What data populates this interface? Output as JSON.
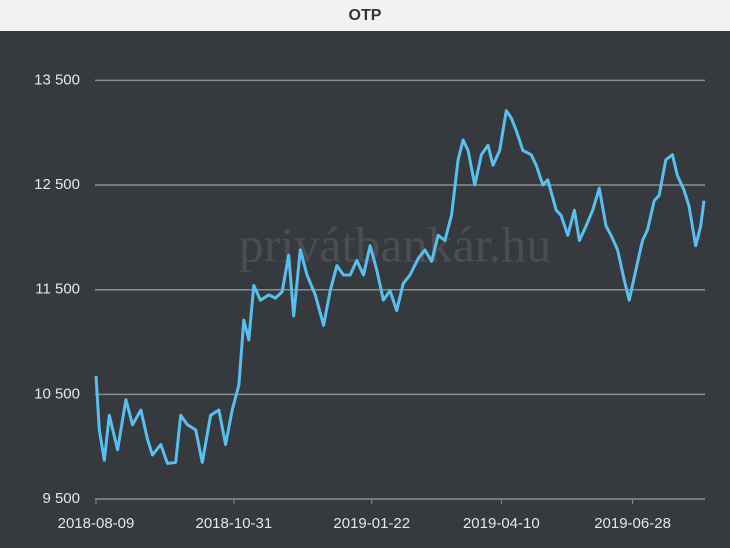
{
  "chart_data": {
    "type": "line",
    "title": "OTP",
    "watermark": "privátbankár.hu",
    "color": "#57c0ee",
    "grid": true,
    "ylim": [
      9500,
      13800
    ],
    "yticks": [
      {
        "value": 9500,
        "label": "9 500"
      },
      {
        "value": 10500,
        "label": "10 500"
      },
      {
        "value": 11500,
        "label": "11 500"
      },
      {
        "value": 12500,
        "label": "12 500"
      },
      {
        "value": 13500,
        "label": "13 500"
      }
    ],
    "xlim": [
      "2018-08-09",
      "2019-08-10"
    ],
    "xticks": [
      "2018-08-09",
      "2018-10-31",
      "2019-01-22",
      "2019-04-10",
      "2019-06-28"
    ],
    "x": [
      "2018-08-09",
      "2018-08-11",
      "2018-08-14",
      "2018-08-17",
      "2018-08-22",
      "2018-08-27",
      "2018-08-31",
      "2018-09-05",
      "2018-09-09",
      "2018-09-12",
      "2018-09-17",
      "2018-09-21",
      "2018-09-26",
      "2018-09-29",
      "2018-10-03",
      "2018-10-08",
      "2018-10-12",
      "2018-10-17",
      "2018-10-22",
      "2018-10-26",
      "2018-10-30",
      "2018-11-03",
      "2018-11-06",
      "2018-11-09",
      "2018-11-12",
      "2018-11-16",
      "2018-11-21",
      "2018-11-25",
      "2018-11-29",
      "2018-12-03",
      "2018-12-06",
      "2018-12-10",
      "2018-12-14",
      "2018-12-19",
      "2018-12-24",
      "2018-12-28",
      "2019-01-01",
      "2019-01-05",
      "2019-01-09",
      "2019-01-13",
      "2019-01-17",
      "2019-01-21",
      "2019-01-25",
      "2019-01-29",
      "2019-02-02",
      "2019-02-06",
      "2019-02-10",
      "2019-02-14",
      "2019-02-19",
      "2019-02-23",
      "2019-02-27",
      "2019-03-03",
      "2019-03-07",
      "2019-03-11",
      "2019-03-15",
      "2019-03-18",
      "2019-03-21",
      "2019-03-25",
      "2019-03-29",
      "2019-04-02",
      "2019-04-05",
      "2019-04-09",
      "2019-04-13",
      "2019-04-16",
      "2019-04-19",
      "2019-04-23",
      "2019-04-28",
      "2019-05-01",
      "2019-05-05",
      "2019-05-08",
      "2019-05-13",
      "2019-05-16",
      "2019-05-20",
      "2019-05-24",
      "2019-05-27",
      "2019-05-31",
      "2019-06-04",
      "2019-06-08",
      "2019-06-12",
      "2019-06-15",
      "2019-06-19",
      "2019-06-23",
      "2019-06-26",
      "2019-06-30",
      "2019-07-04",
      "2019-07-07",
      "2019-07-11",
      "2019-07-14",
      "2019-07-18",
      "2019-07-22",
      "2019-07-25",
      "2019-07-29",
      "2019-08-01",
      "2019-08-05",
      "2019-08-08",
      "2019-08-10"
    ],
    "values": [
      10675,
      10160,
      9870,
      10300,
      9970,
      10450,
      10210,
      10350,
      10070,
      9920,
      10020,
      9840,
      9850,
      10300,
      10210,
      10160,
      9850,
      10300,
      10350,
      10020,
      10350,
      10590,
      11210,
      11020,
      11540,
      11400,
      11450,
      11420,
      11480,
      11830,
      11250,
      11880,
      11640,
      11450,
      11160,
      11490,
      11730,
      11640,
      11640,
      11780,
      11640,
      11920,
      11690,
      11400,
      11490,
      11300,
      11560,
      11640,
      11800,
      11880,
      11770,
      12020,
      11970,
      12210,
      12740,
      12930,
      12830,
      12500,
      12790,
      12880,
      12690,
      12830,
      13210,
      13140,
      13020,
      12830,
      12790,
      12690,
      12500,
      12550,
      12260,
      12210,
      12020,
      12260,
      11970,
      12110,
      12260,
      12470,
      12110,
      12020,
      11880,
      11590,
      11400,
      11690,
      11970,
      12070,
      12350,
      12400,
      12740,
      12790,
      12590,
      12450,
      12300,
      11920,
      12110,
      12350
    ]
  }
}
